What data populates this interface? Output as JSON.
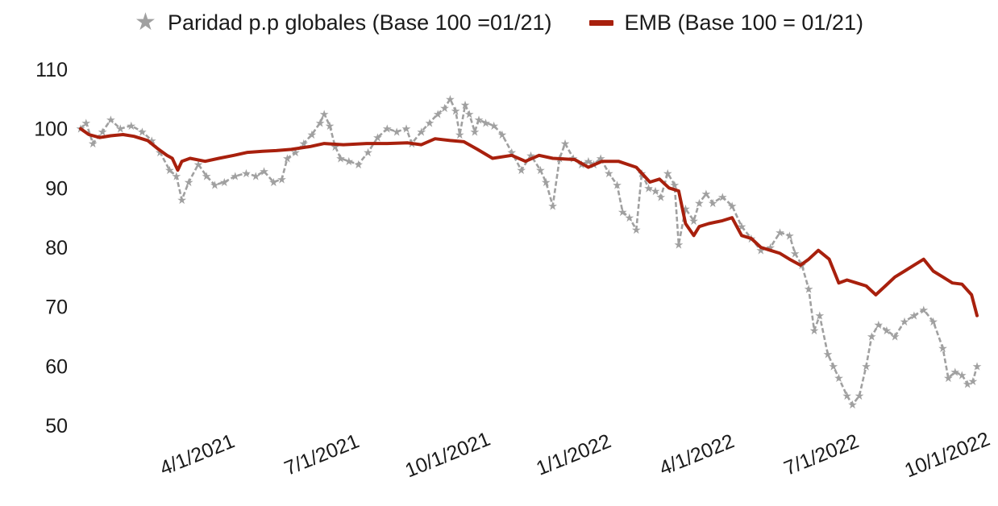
{
  "chart_data": {
    "type": "line",
    "title": "",
    "xlabel": "",
    "ylabel": "",
    "ylim": [
      50,
      110
    ],
    "y_ticks": [
      50,
      60,
      70,
      80,
      90,
      100,
      110
    ],
    "x_tick_labels": [
      "4/1/2021",
      "7/1/2021",
      "10/1/2021",
      "1/1/2022",
      "4/1/2022",
      "7/1/2022",
      "10/1/2022"
    ],
    "x_ticks": [
      "2021-04-01",
      "2021-07-01",
      "2021-10-01",
      "2022-01-01",
      "2022-04-01",
      "2022-07-01",
      "2022-10-01"
    ],
    "xlim": [
      "2021-01-04",
      "2022-10-21"
    ],
    "grid": false,
    "legend_position": "top-center",
    "series": [
      {
        "name": "Paridad p.p globales (Base 100 =01/21)",
        "marker": "star",
        "color": "#a0a0a0",
        "points": [
          [
            "2021-01-04",
            100
          ],
          [
            "2021-01-08",
            101
          ],
          [
            "2021-01-13",
            97.5
          ],
          [
            "2021-01-20",
            99.5
          ],
          [
            "2021-01-26",
            101.5
          ],
          [
            "2021-02-02",
            100
          ],
          [
            "2021-02-10",
            100.5
          ],
          [
            "2021-02-18",
            99.5
          ],
          [
            "2021-02-25",
            98
          ],
          [
            "2021-03-03",
            96
          ],
          [
            "2021-03-10",
            93
          ],
          [
            "2021-03-15",
            92
          ],
          [
            "2021-03-19",
            88
          ],
          [
            "2021-03-24",
            91
          ],
          [
            "2021-03-31",
            94
          ],
          [
            "2021-04-06",
            92
          ],
          [
            "2021-04-12",
            90.5
          ],
          [
            "2021-04-19",
            91
          ],
          [
            "2021-04-27",
            92
          ],
          [
            "2021-05-05",
            92.5
          ],
          [
            "2021-05-12",
            92
          ],
          [
            "2021-05-18",
            92.8
          ],
          [
            "2021-05-25",
            91
          ],
          [
            "2021-05-31",
            91.5
          ],
          [
            "2021-06-04",
            95
          ],
          [
            "2021-06-10",
            96
          ],
          [
            "2021-06-16",
            97.5
          ],
          [
            "2021-06-22",
            99
          ],
          [
            "2021-06-28",
            101
          ],
          [
            "2021-07-01",
            102.5
          ],
          [
            "2021-07-05",
            100.5
          ],
          [
            "2021-07-09",
            97
          ],
          [
            "2021-07-13",
            95
          ],
          [
            "2021-07-19",
            94.5
          ],
          [
            "2021-07-26",
            94
          ],
          [
            "2021-08-02",
            96
          ],
          [
            "2021-08-09",
            98.5
          ],
          [
            "2021-08-16",
            100
          ],
          [
            "2021-08-23",
            99.5
          ],
          [
            "2021-08-30",
            100
          ],
          [
            "2021-09-03",
            97.5
          ],
          [
            "2021-09-10",
            99.5
          ],
          [
            "2021-09-16",
            101
          ],
          [
            "2021-09-22",
            102.5
          ],
          [
            "2021-09-27",
            103.5
          ],
          [
            "2021-10-01",
            105
          ],
          [
            "2021-10-05",
            103
          ],
          [
            "2021-10-08",
            99
          ],
          [
            "2021-10-12",
            104
          ],
          [
            "2021-10-15",
            102.5
          ],
          [
            "2021-10-19",
            99.5
          ],
          [
            "2021-10-22",
            101.5
          ],
          [
            "2021-10-27",
            101
          ],
          [
            "2021-11-02",
            100.5
          ],
          [
            "2021-11-08",
            99
          ],
          [
            "2021-11-15",
            96
          ],
          [
            "2021-11-22",
            93
          ],
          [
            "2021-11-29",
            95.5
          ],
          [
            "2021-12-06",
            93
          ],
          [
            "2021-12-10",
            91
          ],
          [
            "2021-12-15",
            87
          ],
          [
            "2021-12-20",
            95
          ],
          [
            "2021-12-24",
            97.5
          ],
          [
            "2021-12-30",
            95
          ],
          [
            "2022-01-05",
            94
          ],
          [
            "2022-01-10",
            94.5
          ],
          [
            "2022-01-14",
            94
          ],
          [
            "2022-01-19",
            95
          ],
          [
            "2022-01-25",
            92.5
          ],
          [
            "2022-01-31",
            90.5
          ],
          [
            "2022-02-04",
            86
          ],
          [
            "2022-02-09",
            85
          ],
          [
            "2022-02-14",
            83
          ],
          [
            "2022-02-18",
            92.5
          ],
          [
            "2022-02-23",
            90
          ],
          [
            "2022-02-28",
            89.5
          ],
          [
            "2022-03-04",
            88.5
          ],
          [
            "2022-03-09",
            92.5
          ],
          [
            "2022-03-14",
            90.5
          ],
          [
            "2022-03-17",
            80.5
          ],
          [
            "2022-03-22",
            86.5
          ],
          [
            "2022-03-28",
            84.5
          ],
          [
            "2022-04-01",
            87.5
          ],
          [
            "2022-04-06",
            89
          ],
          [
            "2022-04-11",
            87.5
          ],
          [
            "2022-04-18",
            88.5
          ],
          [
            "2022-04-25",
            87
          ],
          [
            "2022-05-02",
            83.5
          ],
          [
            "2022-05-09",
            81.5
          ],
          [
            "2022-05-16",
            79.5
          ],
          [
            "2022-05-23",
            80
          ],
          [
            "2022-05-30",
            82.5
          ],
          [
            "2022-06-06",
            82
          ],
          [
            "2022-06-10",
            79
          ],
          [
            "2022-06-15",
            77
          ],
          [
            "2022-06-20",
            73
          ],
          [
            "2022-06-24",
            66
          ],
          [
            "2022-06-28",
            68.5
          ],
          [
            "2022-07-04",
            62
          ],
          [
            "2022-07-08",
            60
          ],
          [
            "2022-07-12",
            58
          ],
          [
            "2022-07-18",
            55
          ],
          [
            "2022-07-22",
            53.5
          ],
          [
            "2022-07-27",
            55
          ],
          [
            "2022-08-01",
            60
          ],
          [
            "2022-08-05",
            65
          ],
          [
            "2022-08-10",
            67
          ],
          [
            "2022-08-16",
            66
          ],
          [
            "2022-08-22",
            65
          ],
          [
            "2022-08-29",
            67.5
          ],
          [
            "2022-09-05",
            68.5
          ],
          [
            "2022-09-12",
            69.5
          ],
          [
            "2022-09-19",
            67.5
          ],
          [
            "2022-09-26",
            63
          ],
          [
            "2022-09-30",
            58
          ],
          [
            "2022-10-05",
            59
          ],
          [
            "2022-10-10",
            58.5
          ],
          [
            "2022-10-14",
            57
          ],
          [
            "2022-10-18",
            57.5
          ],
          [
            "2022-10-21",
            60
          ]
        ]
      },
      {
        "name": "EMB (Base 100 = 01/21)",
        "marker": "line",
        "color": "#a8200d",
        "points": [
          [
            "2021-01-04",
            100
          ],
          [
            "2021-01-10",
            99
          ],
          [
            "2021-01-18",
            98.5
          ],
          [
            "2021-01-26",
            98.8
          ],
          [
            "2021-02-04",
            99
          ],
          [
            "2021-02-12",
            98.7
          ],
          [
            "2021-02-22",
            98
          ],
          [
            "2021-03-02",
            96.5
          ],
          [
            "2021-03-08",
            95.5
          ],
          [
            "2021-03-12",
            95
          ],
          [
            "2021-03-16",
            93
          ],
          [
            "2021-03-19",
            94.5
          ],
          [
            "2021-03-25",
            95
          ],
          [
            "2021-04-05",
            94.5
          ],
          [
            "2021-04-15",
            95
          ],
          [
            "2021-04-26",
            95.5
          ],
          [
            "2021-05-06",
            96
          ],
          [
            "2021-05-17",
            96.2
          ],
          [
            "2021-05-27",
            96.3
          ],
          [
            "2021-06-07",
            96.5
          ],
          [
            "2021-06-21",
            97
          ],
          [
            "2021-07-01",
            97.5
          ],
          [
            "2021-07-15",
            97.3
          ],
          [
            "2021-08-01",
            97.5
          ],
          [
            "2021-08-16",
            97.5
          ],
          [
            "2021-08-31",
            97.6
          ],
          [
            "2021-09-10",
            97.3
          ],
          [
            "2021-09-20",
            98.3
          ],
          [
            "2021-10-01",
            98
          ],
          [
            "2021-10-11",
            97.8
          ],
          [
            "2021-10-21",
            96.5
          ],
          [
            "2021-11-01",
            95
          ],
          [
            "2021-11-15",
            95.5
          ],
          [
            "2021-11-25",
            94.5
          ],
          [
            "2021-12-05",
            95.5
          ],
          [
            "2021-12-15",
            95
          ],
          [
            "2021-12-31",
            94.8
          ],
          [
            "2022-01-10",
            93.5
          ],
          [
            "2022-01-20",
            94.5
          ],
          [
            "2022-02-01",
            94.5
          ],
          [
            "2022-02-14",
            93.5
          ],
          [
            "2022-02-24",
            91
          ],
          [
            "2022-03-03",
            91.5
          ],
          [
            "2022-03-10",
            90
          ],
          [
            "2022-03-17",
            89.5
          ],
          [
            "2022-03-22",
            84
          ],
          [
            "2022-03-28",
            82
          ],
          [
            "2022-04-01",
            83.5
          ],
          [
            "2022-04-08",
            84
          ],
          [
            "2022-04-18",
            84.5
          ],
          [
            "2022-04-25",
            85
          ],
          [
            "2022-05-02",
            82
          ],
          [
            "2022-05-09",
            81.5
          ],
          [
            "2022-05-16",
            80
          ],
          [
            "2022-05-23",
            79.5
          ],
          [
            "2022-05-30",
            79
          ],
          [
            "2022-06-06",
            78
          ],
          [
            "2022-06-14",
            77
          ],
          [
            "2022-06-20",
            78
          ],
          [
            "2022-06-27",
            79.5
          ],
          [
            "2022-07-05",
            78
          ],
          [
            "2022-07-12",
            74
          ],
          [
            "2022-07-18",
            74.5
          ],
          [
            "2022-07-25",
            74
          ],
          [
            "2022-08-01",
            73.5
          ],
          [
            "2022-08-08",
            72
          ],
          [
            "2022-08-15",
            73.5
          ],
          [
            "2022-08-22",
            75
          ],
          [
            "2022-08-29",
            76
          ],
          [
            "2022-09-05",
            77
          ],
          [
            "2022-09-12",
            78
          ],
          [
            "2022-09-19",
            76
          ],
          [
            "2022-09-26",
            75
          ],
          [
            "2022-10-03",
            74
          ],
          [
            "2022-10-10",
            73.8
          ],
          [
            "2022-10-17",
            72
          ],
          [
            "2022-10-21",
            68.5
          ]
        ]
      }
    ]
  }
}
